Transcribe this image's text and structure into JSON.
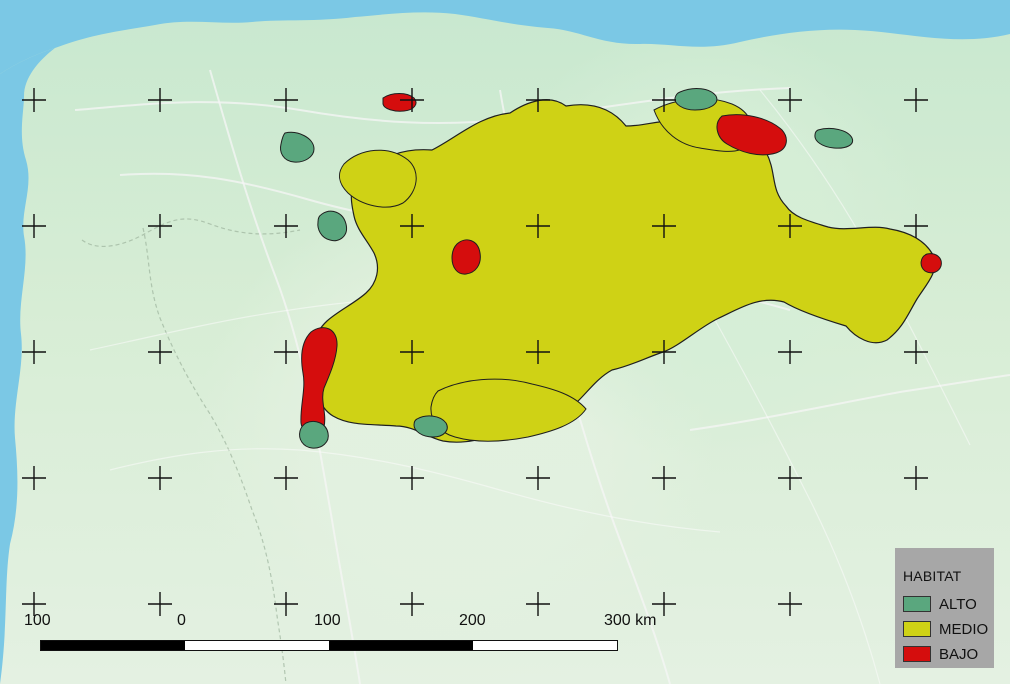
{
  "legend": {
    "title": "HABITAT",
    "items": [
      {
        "label": "ALTO",
        "color": "#5aa77e"
      },
      {
        "label": "MEDIO",
        "color": "#cfd215"
      },
      {
        "label": "BAJO",
        "color": "#d50d0d"
      }
    ]
  },
  "scale": {
    "labels": [
      "100",
      "0",
      "100",
      "200",
      "300 km"
    ]
  },
  "colors": {
    "sea": "#7bc8e5",
    "land": "#d8edd8",
    "outline": "#1f1f1f",
    "legend_background": "#a7a7a7"
  },
  "icons": {
    "grid_marker": "crosshair-icon"
  }
}
